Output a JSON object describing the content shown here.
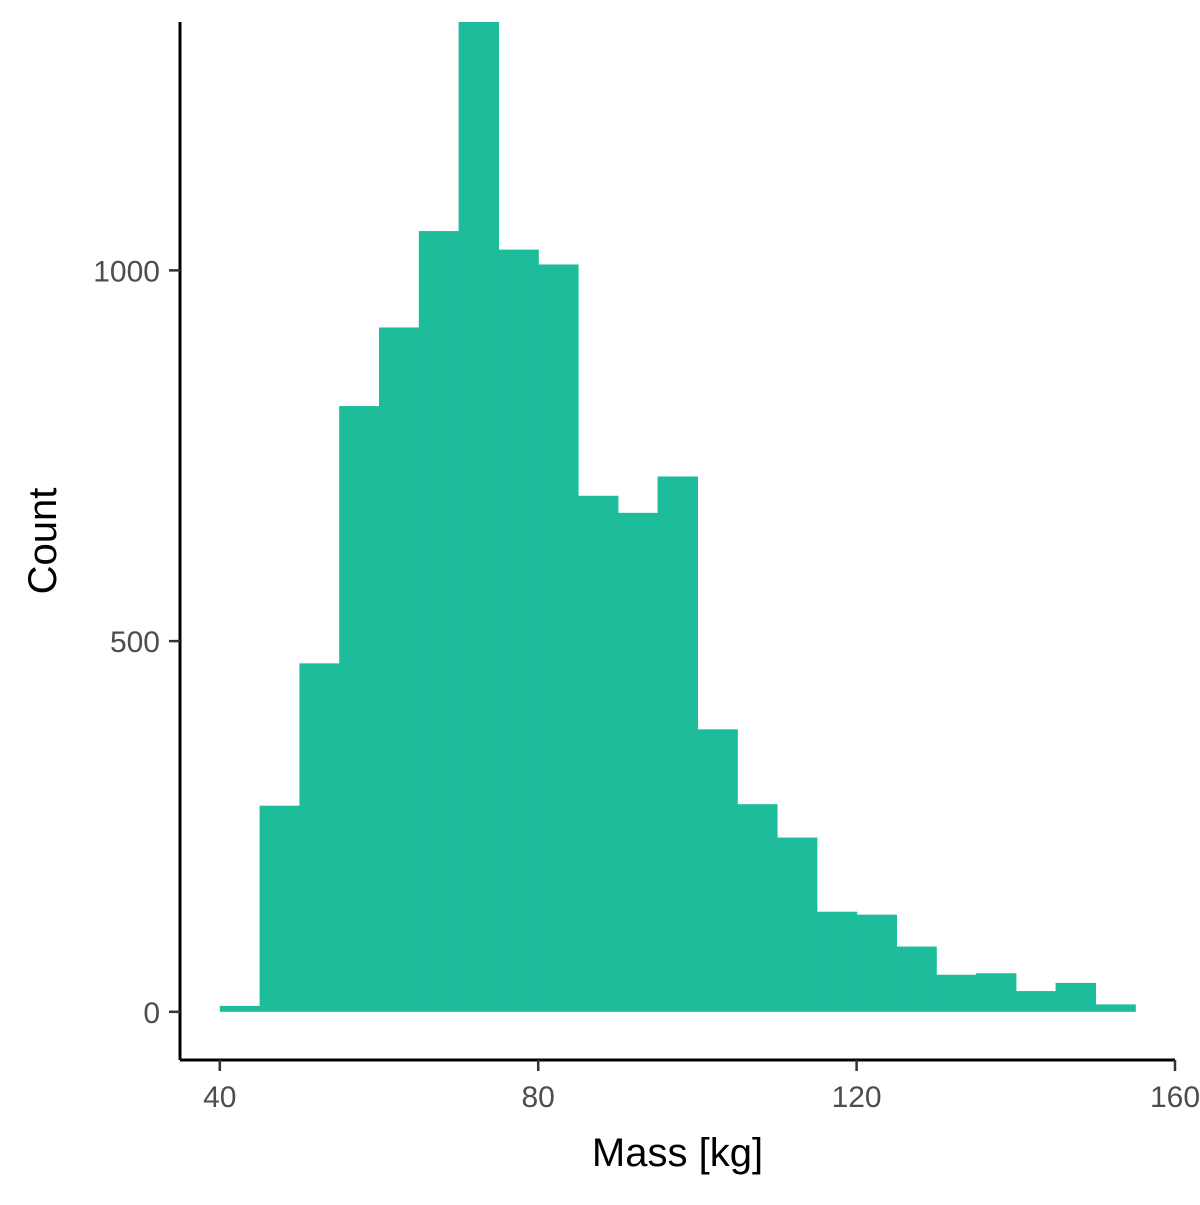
{
  "chart_data": {
    "type": "bar",
    "subtype": "histogram",
    "xlabel": "Mass [kg]",
    "ylabel": "Count",
    "xlim": [
      35,
      160
    ],
    "ylim": [
      -65,
      1335
    ],
    "xticks": [
      40,
      80,
      120,
      160
    ],
    "yticks": [
      0,
      500,
      1000
    ],
    "fill_color": "#1DBD9C",
    "grid": false,
    "legend": "none",
    "bins": [
      {
        "x0": 40,
        "x1": 45,
        "count": 8
      },
      {
        "x0": 45,
        "x1": 50,
        "count": 278
      },
      {
        "x0": 50,
        "x1": 55,
        "count": 470
      },
      {
        "x0": 55,
        "x1": 60,
        "count": 817
      },
      {
        "x0": 60,
        "x1": 65,
        "count": 923
      },
      {
        "x0": 65,
        "x1": 70,
        "count": 1053
      },
      {
        "x0": 70,
        "x1": 75,
        "count": 1335
      },
      {
        "x0": 75,
        "x1": 80,
        "count": 1028
      },
      {
        "x0": 80,
        "x1": 85,
        "count": 1008
      },
      {
        "x0": 85,
        "x1": 90,
        "count": 696
      },
      {
        "x0": 90,
        "x1": 95,
        "count": 673
      },
      {
        "x0": 95,
        "x1": 100,
        "count": 722
      },
      {
        "x0": 100,
        "x1": 105,
        "count": 381
      },
      {
        "x0": 105,
        "x1": 110,
        "count": 280
      },
      {
        "x0": 110,
        "x1": 115,
        "count": 235
      },
      {
        "x0": 115,
        "x1": 120,
        "count": 135
      },
      {
        "x0": 120,
        "x1": 125,
        "count": 131
      },
      {
        "x0": 125,
        "x1": 130,
        "count": 88
      },
      {
        "x0": 130,
        "x1": 135,
        "count": 50
      },
      {
        "x0": 135,
        "x1": 140,
        "count": 52
      },
      {
        "x0": 140,
        "x1": 145,
        "count": 28
      },
      {
        "x0": 145,
        "x1": 150,
        "count": 39
      },
      {
        "x0": 150,
        "x1": 155,
        "count": 10
      }
    ]
  }
}
